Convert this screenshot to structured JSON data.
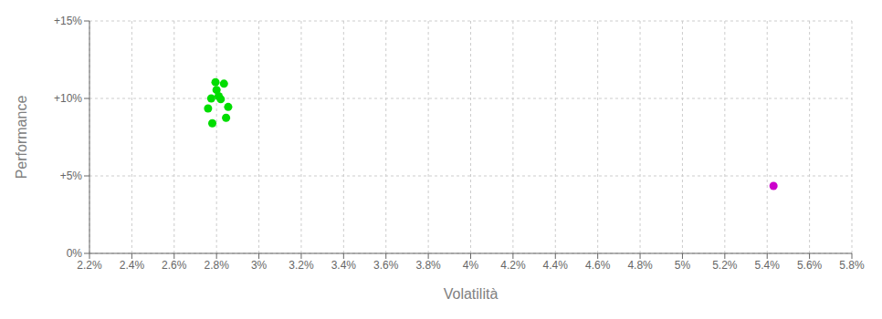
{
  "chart_data": {
    "type": "scatter",
    "xlabel": "Volatilità",
    "ylabel": "Performance",
    "xlim": [
      0.022,
      0.058
    ],
    "ylim": [
      0.0,
      0.15
    ],
    "xticks": [
      {
        "value": 0.022,
        "label": "2.2%"
      },
      {
        "value": 0.024,
        "label": "2.4%"
      },
      {
        "value": 0.026,
        "label": "2.6%"
      },
      {
        "value": 0.028,
        "label": "2.8%"
      },
      {
        "value": 0.03,
        "label": "3%"
      },
      {
        "value": 0.032,
        "label": "3.2%"
      },
      {
        "value": 0.034,
        "label": "3.4%"
      },
      {
        "value": 0.036,
        "label": "3.6%"
      },
      {
        "value": 0.038,
        "label": "3.8%"
      },
      {
        "value": 0.04,
        "label": "4%"
      },
      {
        "value": 0.042,
        "label": "4.2%"
      },
      {
        "value": 0.044,
        "label": "4.4%"
      },
      {
        "value": 0.046,
        "label": "4.6%"
      },
      {
        "value": 0.048,
        "label": "4.8%"
      },
      {
        "value": 0.05,
        "label": "5%"
      },
      {
        "value": 0.052,
        "label": "5.2%"
      },
      {
        "value": 0.054,
        "label": "5.4%"
      },
      {
        "value": 0.056,
        "label": "5.6%"
      },
      {
        "value": 0.058,
        "label": "5.8%"
      }
    ],
    "yticks": [
      {
        "value": 0.0,
        "label": "0%"
      },
      {
        "value": 0.05,
        "label": "+5%"
      },
      {
        "value": 0.1,
        "label": "+10%"
      },
      {
        "value": 0.15,
        "label": "+15%"
      }
    ],
    "grid": true,
    "series": [
      {
        "color": "#00dd00",
        "x": [
          0.02795,
          0.02835,
          0.02775,
          0.0282,
          0.0281,
          0.0276,
          0.02855,
          0.02845,
          0.028,
          0.0278
        ],
        "values": [
          0.1105,
          0.1095,
          0.1,
          0.0995,
          0.1015,
          0.0935,
          0.0945,
          0.0875,
          0.1055,
          0.084
        ]
      },
      {
        "color": "#cc00cc",
        "x": [
          0.0543
        ],
        "values": [
          0.0435
        ]
      }
    ]
  }
}
